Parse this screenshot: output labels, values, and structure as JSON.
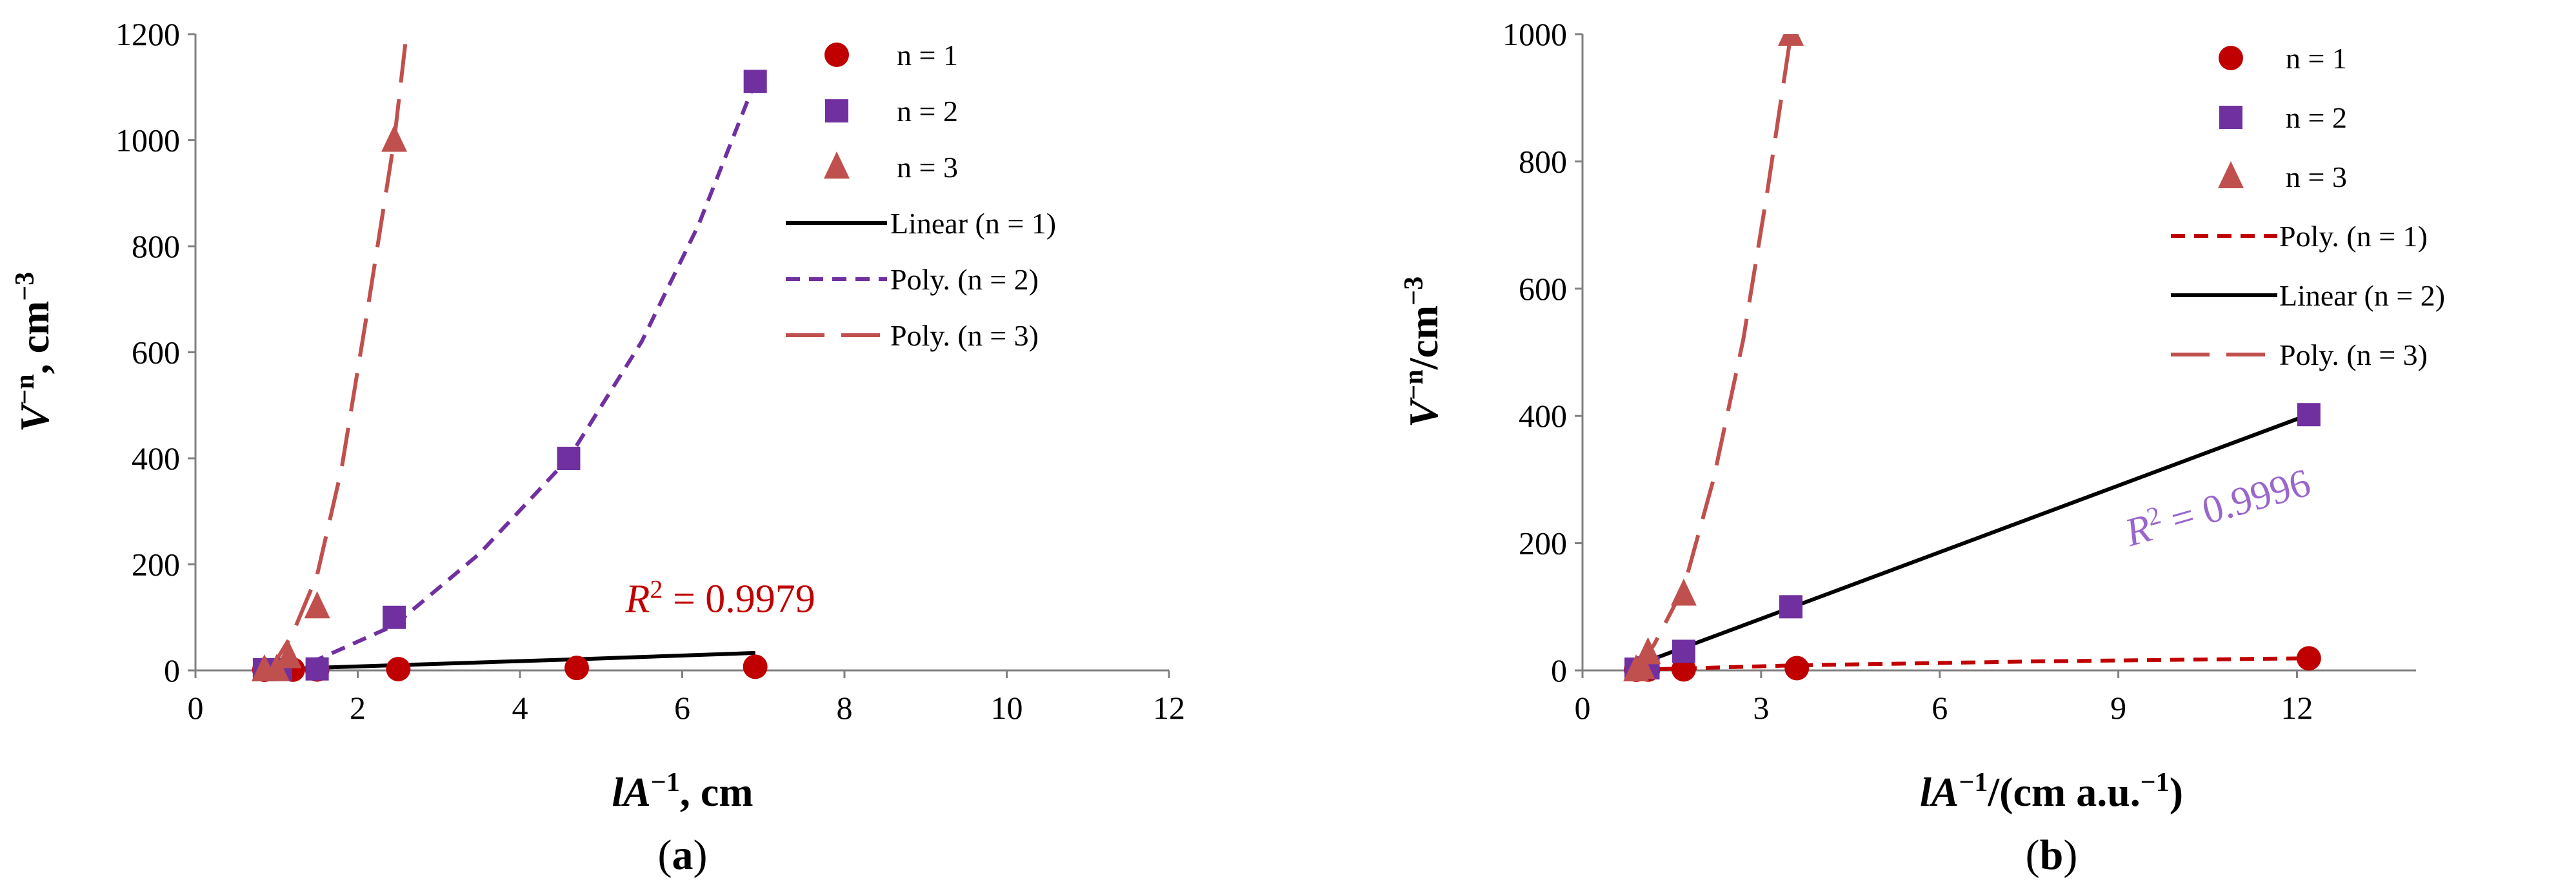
{
  "chart_data": [
    {
      "panel": "a",
      "type": "scatter",
      "panel_label": {
        "open": "(",
        "letter": "a",
        "close": ")"
      },
      "xlabel": {
        "main": "lA",
        "sup": "−1",
        "rest": ", cm"
      },
      "ylabel": {
        "main": "V",
        "sup": "−n",
        "rest": ", cm",
        "sup2": "−3"
      },
      "xlim": [
        0,
        12
      ],
      "ylim": [
        0,
        1200
      ],
      "xticks": [
        0,
        2,
        4,
        6,
        8,
        10,
        12
      ],
      "yticks": [
        0,
        200,
        400,
        600,
        800,
        1000,
        1200
      ],
      "grid": false,
      "legend_position": "top-right",
      "series": [
        {
          "name": "n = 1",
          "marker": "circle",
          "color": "#C00000",
          "points": [
            [
              0.85,
              1.1
            ],
            [
              1.2,
              1.4
            ],
            [
              1.5,
              1.7
            ],
            [
              2.5,
              2.5
            ],
            [
              4.7,
              4.7
            ],
            [
              6.9,
              6.9
            ]
          ]
        },
        {
          "name": "n = 2",
          "marker": "square",
          "color": "#7030A0",
          "points": [
            [
              0.85,
              1.2
            ],
            [
              1.05,
              1.5
            ],
            [
              1.5,
              2.8
            ],
            [
              2.45,
              100
            ],
            [
              4.6,
              400
            ],
            [
              6.9,
              1111
            ]
          ]
        },
        {
          "name": "n = 3",
          "marker": "triangle",
          "color": "#C0504D",
          "points": [
            [
              0.85,
              1.3
            ],
            [
              1.0,
              1.8
            ],
            [
              1.15,
              26
            ],
            [
              1.5,
              120
            ],
            [
              2.45,
              1000
            ]
          ]
        }
      ],
      "trendlines": [
        {
          "name": "Linear (n = 1)",
          "style": "solid",
          "color": "#000000",
          "points": [
            [
              0.85,
              1
            ],
            [
              1.5,
              5
            ],
            [
              2.5,
              10
            ],
            [
              4.7,
              21
            ],
            [
              6.9,
              33
            ]
          ]
        },
        {
          "name": "Poly. (n = 2)",
          "style": "short-dash",
          "color": "#7030A0",
          "points": [
            [
              0.85,
              2
            ],
            [
              1.5,
              20
            ],
            [
              2.45,
              85
            ],
            [
              3.5,
              220
            ],
            [
              4.6,
              400
            ],
            [
              5.5,
              620
            ],
            [
              6.2,
              840
            ],
            [
              6.9,
              1111
            ]
          ]
        },
        {
          "name": "Poly. (n = 3)",
          "style": "long-dash",
          "color": "#C0504D",
          "points": [
            [
              0.85,
              1
            ],
            [
              1.0,
              20
            ],
            [
              1.2,
              70
            ],
            [
              1.5,
              180
            ],
            [
              1.8,
              380
            ],
            [
              2.1,
              660
            ],
            [
              2.45,
              1000
            ],
            [
              2.6,
              1200
            ]
          ]
        }
      ],
      "annotation": {
        "main": "R",
        "sup": "2",
        "rest": " = 0.9979",
        "color": "#C00000",
        "x": 5.3,
        "y": 110,
        "rotate": 0
      }
    },
    {
      "panel": "b",
      "type": "scatter",
      "panel_label": {
        "open": "(",
        "letter": "b",
        "close": ")"
      },
      "xlabel": {
        "main": "lA",
        "sup": "−1",
        "rest": "/(cm a.u.",
        "sup2": "−1",
        "rest2": ")"
      },
      "ylabel": {
        "main": "V",
        "sup": "−n",
        "rest": "/cm",
        "sup2": "−3"
      },
      "xlim": [
        0,
        14
      ],
      "ylim": [
        0,
        1000
      ],
      "xticks": [
        0,
        3,
        6,
        9,
        12
      ],
      "yticks": [
        0,
        200,
        400,
        600,
        800,
        1000
      ],
      "grid": false,
      "legend_position": "top-right",
      "series": [
        {
          "name": "n = 1",
          "marker": "circle",
          "color": "#C00000",
          "points": [
            [
              0.9,
              1.1
            ],
            [
              1.1,
              1.3
            ],
            [
              1.7,
              1.7
            ],
            [
              3.6,
              3.6
            ],
            [
              12.2,
              19
            ]
          ]
        },
        {
          "name": "n = 2",
          "marker": "square",
          "color": "#7030A0",
          "points": [
            [
              0.9,
              2
            ],
            [
              1.1,
              4
            ],
            [
              1.7,
              30
            ],
            [
              3.5,
              100
            ],
            [
              12.2,
              402
            ]
          ]
        },
        {
          "name": "n = 3",
          "marker": "triangle",
          "color": "#C0504D",
          "points": [
            [
              0.9,
              1
            ],
            [
              1.0,
              5
            ],
            [
              1.1,
              28
            ],
            [
              1.7,
              120
            ],
            [
              3.5,
              1000
            ]
          ]
        }
      ],
      "trendlines": [
        {
          "name": "Poly. (n = 1)",
          "style": "short-dash",
          "color": "#C00000",
          "points": [
            [
              0.9,
              1
            ],
            [
              3.6,
              8
            ],
            [
              7.5,
              14
            ],
            [
              12.2,
              19
            ]
          ]
        },
        {
          "name": "Linear (n = 2)",
          "style": "solid",
          "color": "#000000",
          "points": [
            [
              0.9,
              8
            ],
            [
              12.2,
              402
            ]
          ]
        },
        {
          "name": "Poly. (n = 3)",
          "style": "long-dash",
          "color": "#C0504D",
          "points": [
            [
              0.9,
              1
            ],
            [
              1.2,
              40
            ],
            [
              1.7,
              130
            ],
            [
              2.2,
              300
            ],
            [
              2.7,
              520
            ],
            [
              3.1,
              750
            ],
            [
              3.5,
              1000
            ]
          ]
        }
      ],
      "annotation": {
        "main": "R",
        "sup": "2",
        "rest": " = 0.9996",
        "color": "#9966CC",
        "x": 9.2,
        "y": 195,
        "rotate": -16
      }
    }
  ]
}
